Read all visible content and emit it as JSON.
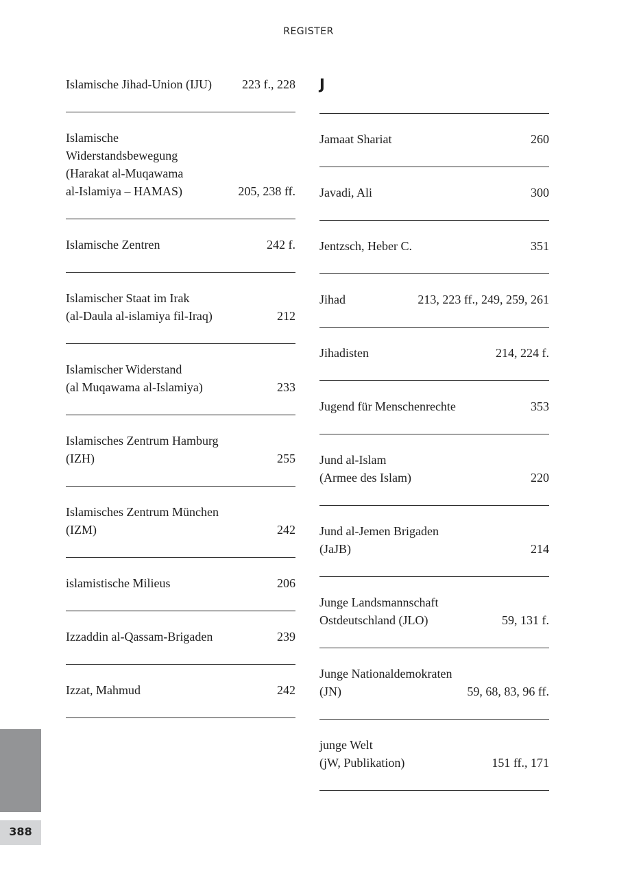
{
  "header": "REGISTER",
  "page_number": "388",
  "colors": {
    "tab": "#939496",
    "page_number_bg": "#d4d5d7"
  },
  "left_entries": [
    {
      "name": "Islamische Jihad-Union (IJU)",
      "pages": "223 f., 228"
    },
    {
      "name": "Islamische\nWiderstandsbewegung\n(Harakat al-Muqawama\nal-Islamiya – HAMAS)",
      "pages": "205, 238 ff."
    },
    {
      "name": "Islamische Zentren",
      "pages": "242 f."
    },
    {
      "name": "Islamischer Staat im Irak\n(al-Daula al-islamiya fil-Iraq)",
      "pages": "212"
    },
    {
      "name": "Islamischer Widerstand\n(al Muqawama al-Islamiya)",
      "pages": "233"
    },
    {
      "name": "Islamisches Zentrum Hamburg\n(IZH)",
      "pages": "255"
    },
    {
      "name": "Islamisches Zentrum München\n(IZM)",
      "pages": "242"
    },
    {
      "name": "islamistische Milieus",
      "pages": "206"
    },
    {
      "name": "Izzaddin al-Qassam-Brigaden",
      "pages": "239"
    },
    {
      "name": "Izzat, Mahmud",
      "pages": "242"
    }
  ],
  "right_letter": "J",
  "right_entries": [
    {
      "name": "Jamaat Shariat",
      "pages": "260"
    },
    {
      "name": "Javadi, Ali",
      "pages": "300"
    },
    {
      "name": "Jentzsch, Heber C.",
      "pages": "351"
    },
    {
      "name": "Jihad",
      "pages": "213, 223 ff., 249, 259, 261"
    },
    {
      "name": "Jihadisten",
      "pages": "214, 224 f."
    },
    {
      "name": "Jugend für Menschenrechte",
      "pages": "353"
    },
    {
      "name": "Jund al-Islam\n(Armee des Islam)",
      "pages": "220"
    },
    {
      "name": "Jund al-Jemen Brigaden\n(JaJB)",
      "pages": "214"
    },
    {
      "name": "Junge Landsmannschaft\nOstdeutschland (JLO)",
      "pages": "59, 131 f."
    },
    {
      "name": "Junge Nationaldemokraten\n(JN)",
      "pages": "59, 68, 83, 96 ff."
    },
    {
      "name": "junge Welt\n(jW, Publikation)",
      "pages": "151 ff., 171"
    }
  ]
}
